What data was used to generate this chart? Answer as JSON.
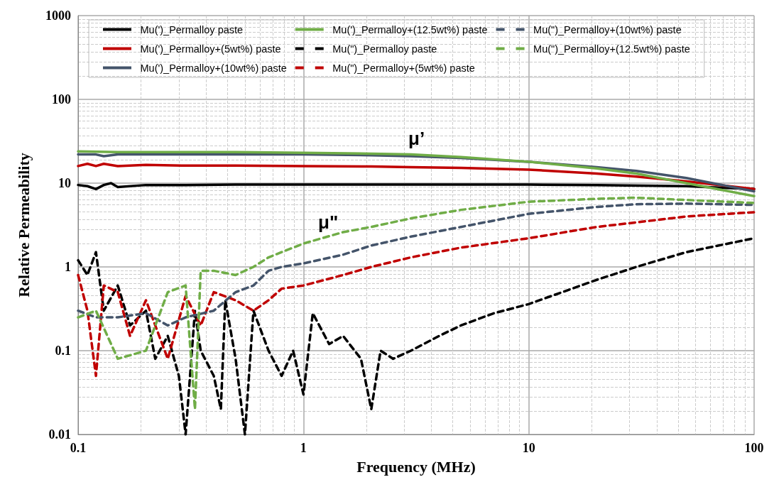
{
  "chart_data": {
    "type": "line",
    "xlabel": "Frequency (MHz)",
    "ylabel": "Relative Permeability",
    "log": "xy",
    "xlim": [
      0.1,
      100
    ],
    "ylim": [
      0.01,
      1000
    ],
    "xticks": [
      0.1,
      1,
      10,
      100
    ],
    "yticks": [
      0.01,
      0.1,
      1,
      10,
      100,
      1000
    ],
    "grid": true,
    "legend": "top",
    "marker": "none",
    "annotations": [
      "μ’",
      "μ\""
    ],
    "series": [
      {
        "name": "Mu(')_Permalloy paste",
        "color": "#000000",
        "line_style": "solid",
        "x": [
          0.1,
          0.11,
          0.12,
          0.13,
          0.14,
          0.15,
          0.2,
          0.3,
          0.5,
          1,
          2,
          5,
          10,
          20,
          50,
          100
        ],
        "values": [
          9.5,
          9.2,
          8.5,
          9.5,
          10,
          9,
          9.5,
          9.5,
          9.6,
          9.6,
          9.6,
          9.6,
          9.6,
          9.5,
          9.2,
          8.5
        ]
      },
      {
        "name": "Mu(')_Permalloy+(5wt%) paste",
        "color": "#c00000",
        "line_style": "solid",
        "x": [
          0.1,
          0.11,
          0.12,
          0.13,
          0.15,
          0.2,
          0.3,
          0.5,
          1,
          2,
          3,
          5,
          10,
          20,
          30,
          50,
          100
        ],
        "values": [
          16,
          17,
          16,
          17,
          16,
          16.5,
          16.2,
          16.2,
          16,
          15.8,
          15.5,
          15.2,
          14.5,
          13,
          12,
          10.5,
          8.5
        ]
      },
      {
        "name": "Mu(')_Permalloy+(10wt%) paste",
        "color": "#44546a",
        "line_style": "solid",
        "x": [
          0.1,
          0.12,
          0.13,
          0.15,
          0.2,
          0.3,
          0.5,
          1,
          2,
          3,
          5,
          10,
          20,
          30,
          50,
          100
        ],
        "values": [
          22,
          22,
          21,
          22,
          22,
          22,
          22,
          22,
          21.5,
          21,
          20,
          18,
          15.5,
          14,
          11.5,
          8
        ]
      },
      {
        "name": "Mu(')_Permalloy+(12.5wt%) paste",
        "color": "#70ad47",
        "line_style": "solid",
        "x": [
          0.1,
          0.15,
          0.2,
          0.3,
          0.5,
          1,
          2,
          3,
          5,
          10,
          20,
          30,
          50,
          100
        ],
        "values": [
          24,
          23.5,
          23.5,
          23.5,
          23.5,
          23,
          22.5,
          22,
          20.5,
          18,
          15,
          13,
          10,
          7
        ]
      },
      {
        "name": "Mu(\")_Permalloy paste",
        "color": "#000000",
        "line_style": "dashed",
        "x": [
          0.1,
          0.11,
          0.12,
          0.13,
          0.15,
          0.17,
          0.2,
          0.22,
          0.25,
          0.28,
          0.3,
          0.33,
          0.35,
          0.4,
          0.43,
          0.45,
          0.5,
          0.55,
          0.6,
          0.7,
          0.8,
          0.9,
          1,
          1.1,
          1.3,
          1.5,
          1.8,
          2,
          2.2,
          2.5,
          3,
          4,
          5,
          7,
          10,
          20,
          30,
          50,
          100
        ],
        "values": [
          1.2,
          0.8,
          1.5,
          0.3,
          0.6,
          0.2,
          0.3,
          0.08,
          0.15,
          0.05,
          0.01,
          0.3,
          0.1,
          0.05,
          0.02,
          0.4,
          0.08,
          0.01,
          0.3,
          0.1,
          0.05,
          0.1,
          0.03,
          0.28,
          0.12,
          0.15,
          0.08,
          0.02,
          0.1,
          0.08,
          0.1,
          0.15,
          0.2,
          0.28,
          0.36,
          0.7,
          1,
          1.5,
          2.2
        ]
      },
      {
        "name": "Mu(\")_Permalloy+(5wt%) paste",
        "color": "#c00000",
        "line_style": "dashed",
        "x": [
          0.1,
          0.11,
          0.12,
          0.13,
          0.15,
          0.17,
          0.2,
          0.22,
          0.25,
          0.3,
          0.35,
          0.4,
          0.5,
          0.6,
          0.7,
          0.8,
          1,
          1.5,
          2,
          3,
          5,
          10,
          20,
          30,
          50,
          100
        ],
        "values": [
          0.8,
          0.3,
          0.05,
          0.6,
          0.5,
          0.15,
          0.4,
          0.2,
          0.08,
          0.45,
          0.2,
          0.5,
          0.4,
          0.3,
          0.4,
          0.55,
          0.6,
          0.8,
          1,
          1.3,
          1.7,
          2.2,
          3,
          3.4,
          4,
          4.5
        ]
      },
      {
        "name": "Mu(\")_Permalloy+(10wt%) paste",
        "color": "#44546a",
        "line_style": "dashed",
        "x": [
          0.1,
          0.12,
          0.15,
          0.2,
          0.25,
          0.3,
          0.4,
          0.5,
          0.6,
          0.7,
          0.8,
          1,
          1.5,
          2,
          3,
          5,
          10,
          20,
          30,
          50,
          100
        ],
        "values": [
          0.3,
          0.25,
          0.25,
          0.28,
          0.2,
          0.25,
          0.3,
          0.5,
          0.6,
          0.9,
          1,
          1.1,
          1.4,
          1.8,
          2.3,
          3,
          4.3,
          5.2,
          5.6,
          5.7,
          5.5
        ]
      },
      {
        "name": "Mu(\")_Permalloy+(12.5wt%) paste",
        "color": "#70ad47",
        "line_style": "dashed",
        "x": [
          0.1,
          0.12,
          0.15,
          0.2,
          0.25,
          0.3,
          0.33,
          0.35,
          0.4,
          0.5,
          0.6,
          0.7,
          0.8,
          1,
          1.5,
          2,
          3,
          5,
          10,
          20,
          30,
          50,
          100
        ],
        "values": [
          0.25,
          0.3,
          0.08,
          0.1,
          0.5,
          0.6,
          0.02,
          0.9,
          0.9,
          0.8,
          1,
          1.3,
          1.5,
          1.9,
          2.6,
          3,
          3.8,
          4.8,
          6,
          6.5,
          6.7,
          6.3,
          5.8
        ]
      }
    ]
  }
}
